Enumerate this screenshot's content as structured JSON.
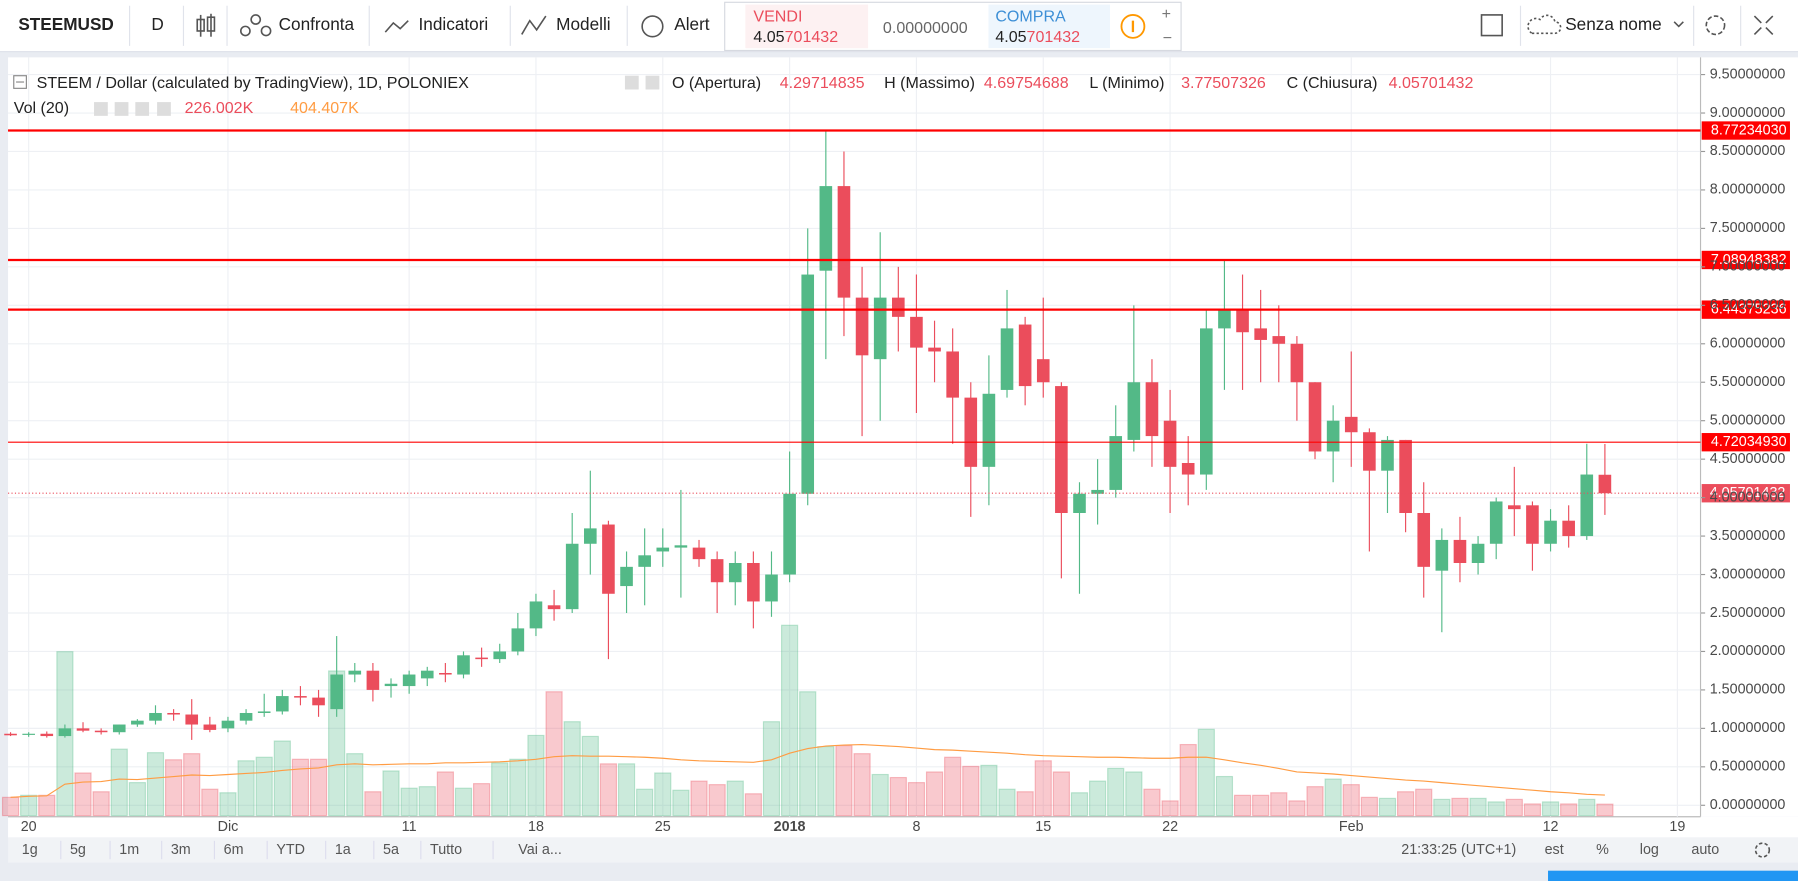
{
  "toolbar": {
    "symbol": "STEEMUSD",
    "interval": "D",
    "compare": "Confronta",
    "indicators": "Indicatori",
    "templates": "Modelli",
    "alert": "Alert",
    "sell_label": "VENDI",
    "sell_price": 4.05701432,
    "spread": "0.00000000",
    "buy_label": "COMPRA",
    "buy_price": 4.05701432,
    "layout_name": "Senza nome"
  },
  "bottom_bar": {
    "ranges": [
      "1g",
      "5g",
      "1m",
      "3m",
      "6m",
      "YTD",
      "1a",
      "5a",
      "Tutto"
    ],
    "goto": "Vai a...",
    "clock": "21:33:25 (UTC+1)",
    "est": "est",
    "percent": "%",
    "log": "log",
    "auto": "auto"
  },
  "chart_data": {
    "type": "candlestick",
    "title": "STEEM / Dollar (calculated by TradingView), 1D, POLONIEX",
    "legend": {
      "open": "O (Apertura)",
      "high": "H (Massimo)",
      "low": "L (Minimo)",
      "close": "C (Chiusura)",
      "volume_title": "Vol (20)",
      "volume": "226.002K",
      "ma": "404.407K"
    },
    "x": [
      "2017-11-19",
      "2017-11-20",
      "2017-11-21",
      "2017-11-22",
      "2017-11-23",
      "2017-11-24",
      "2017-11-25",
      "2017-11-26",
      "2017-11-27",
      "2017-11-28",
      "2017-11-29",
      "2017-11-30",
      "2017-12-01",
      "2017-12-02",
      "2017-12-03",
      "2017-12-04",
      "2017-12-05",
      "2017-12-06",
      "2017-12-07",
      "2017-12-08",
      "2017-12-09",
      "2017-12-10",
      "2017-12-11",
      "2017-12-12",
      "2017-12-13",
      "2017-12-14",
      "2017-12-15",
      "2017-12-16",
      "2017-12-17",
      "2017-12-18",
      "2017-12-19",
      "2017-12-20",
      "2017-12-21",
      "2017-12-22",
      "2017-12-23",
      "2017-12-24",
      "2017-12-25",
      "2017-12-26",
      "2017-12-27",
      "2017-12-28",
      "2017-12-29",
      "2017-12-30",
      "2017-12-31",
      "2018-01-01",
      "2018-01-02",
      "2018-01-03",
      "2018-01-04",
      "2018-01-05",
      "2018-01-06",
      "2018-01-07",
      "2018-01-08",
      "2018-01-09",
      "2018-01-10",
      "2018-01-11",
      "2018-01-12",
      "2018-01-13",
      "2018-01-14",
      "2018-01-15",
      "2018-01-16",
      "2018-01-17",
      "2018-01-18",
      "2018-01-19",
      "2018-01-20",
      "2018-01-21",
      "2018-01-22",
      "2018-01-23",
      "2018-01-24",
      "2018-01-25",
      "2018-01-26",
      "2018-01-27",
      "2018-01-28",
      "2018-01-29",
      "2018-01-30",
      "2018-01-31",
      "2018-02-01",
      "2018-02-02",
      "2018-02-03",
      "2018-02-04",
      "2018-02-05",
      "2018-02-06",
      "2018-02-07",
      "2018-02-08",
      "2018-02-09",
      "2018-02-10",
      "2018-02-11",
      "2018-02-12",
      "2018-02-13",
      "2018-02-14",
      "2018-02-15"
    ],
    "open": [
      0.93,
      0.92,
      0.93,
      0.9,
      1.0,
      0.97,
      0.95,
      1.05,
      1.1,
      1.2,
      1.18,
      1.05,
      1.0,
      1.1,
      1.2,
      1.22,
      1.42,
      1.4,
      1.25,
      1.7,
      1.75,
      1.55,
      1.55,
      1.65,
      1.72,
      1.7,
      1.92,
      1.9,
      2.0,
      2.3,
      2.6,
      2.55,
      3.4,
      3.65,
      2.85,
      3.1,
      3.3,
      3.35,
      3.35,
      3.2,
      2.9,
      3.15,
      2.65,
      3.0,
      4.05,
      6.95,
      8.05,
      6.6,
      5.8,
      6.6,
      6.35,
      5.95,
      5.9,
      5.3,
      4.4,
      5.4,
      6.25,
      5.8,
      5.45,
      3.8,
      4.05,
      4.1,
      4.75,
      5.5,
      5.0,
      4.45,
      4.3,
      6.2,
      6.45,
      6.2,
      6.1,
      6.0,
      5.5,
      4.6,
      5.05,
      4.85,
      4.35,
      4.75,
      3.8,
      3.05,
      3.45,
      3.15,
      3.4,
      3.9,
      3.9,
      3.4,
      3.7,
      3.5,
      4.29714835
    ],
    "high": [
      0.95,
      0.95,
      0.96,
      1.05,
      1.08,
      1.0,
      1.05,
      1.12,
      1.3,
      1.25,
      1.38,
      1.15,
      1.15,
      1.25,
      1.45,
      1.5,
      1.55,
      1.5,
      2.2,
      1.85,
      1.85,
      1.65,
      1.75,
      1.8,
      1.85,
      2.0,
      2.05,
      2.1,
      2.5,
      2.75,
      2.8,
      3.8,
      4.35,
      3.7,
      3.3,
      3.6,
      3.6,
      4.1,
      3.45,
      3.3,
      3.3,
      3.3,
      3.3,
      4.6,
      7.5,
      8.77,
      8.5,
      7.0,
      7.45,
      7.0,
      6.9,
      6.3,
      6.2,
      5.5,
      5.85,
      6.7,
      6.35,
      6.6,
      5.5,
      4.2,
      4.5,
      5.2,
      6.5,
      5.8,
      5.4,
      4.8,
      6.45,
      7.1,
      6.9,
      6.7,
      6.5,
      6.1,
      5.5,
      5.2,
      5.9,
      4.9,
      4.8,
      4.75,
      4.2,
      3.6,
      3.75,
      3.5,
      4.0,
      4.4,
      3.95,
      3.85,
      3.9,
      4.7,
      4.69754688
    ],
    "low": [
      0.9,
      0.89,
      0.88,
      0.88,
      0.95,
      0.92,
      0.92,
      1.02,
      1.05,
      1.1,
      0.85,
      0.95,
      0.95,
      1.05,
      1.15,
      1.18,
      1.3,
      1.15,
      1.15,
      1.6,
      1.35,
      1.4,
      1.45,
      1.55,
      1.6,
      1.65,
      1.8,
      1.85,
      1.95,
      2.2,
      2.4,
      2.5,
      3.0,
      1.9,
      2.5,
      2.6,
      3.1,
      2.7,
      3.1,
      2.5,
      2.6,
      2.3,
      2.45,
      2.9,
      3.9,
      5.8,
      6.1,
      4.8,
      5.0,
      5.9,
      5.1,
      5.5,
      4.7,
      3.75,
      3.9,
      5.3,
      5.2,
      5.3,
      2.95,
      2.75,
      3.65,
      4.0,
      4.6,
      4.4,
      3.8,
      3.9,
      4.1,
      5.4,
      5.4,
      5.5,
      5.5,
      5.0,
      4.5,
      4.2,
      4.4,
      3.3,
      3.8,
      3.55,
      2.7,
      2.25,
      2.9,
      3.0,
      3.2,
      3.5,
      3.05,
      3.3,
      3.35,
      3.45,
      3.77507326
    ],
    "close": [
      0.91,
      0.93,
      0.9,
      1.0,
      0.97,
      0.95,
      1.05,
      1.1,
      1.2,
      1.18,
      1.05,
      0.98,
      1.1,
      1.2,
      1.22,
      1.42,
      1.4,
      1.3,
      1.7,
      1.75,
      1.5,
      1.58,
      1.7,
      1.75,
      1.7,
      1.95,
      1.9,
      2.0,
      2.3,
      2.65,
      2.55,
      3.4,
      3.6,
      2.75,
      3.1,
      3.25,
      3.35,
      3.38,
      3.2,
      2.9,
      3.15,
      2.65,
      3.0,
      4.05,
      6.9,
      8.05,
      6.6,
      5.85,
      6.6,
      6.35,
      5.95,
      5.9,
      5.3,
      4.4,
      5.35,
      6.2,
      5.45,
      5.5,
      3.8,
      4.05,
      4.1,
      4.8,
      5.5,
      4.8,
      4.4,
      4.3,
      6.2,
      6.45,
      6.15,
      6.05,
      6.0,
      5.5,
      4.6,
      5.0,
      4.85,
      4.35,
      4.75,
      3.8,
      3.1,
      3.45,
      3.15,
      3.4,
      3.95,
      3.85,
      3.4,
      3.7,
      3.5,
      4.3,
      4.05701432
    ],
    "volume": [
      360,
      400,
      400,
      3230,
      840,
      470,
      1310,
      650,
      1240,
      1100,
      1220,
      520,
      450,
      1080,
      1150,
      1470,
      1110,
      1110,
      2850,
      1220,
      470,
      880,
      540,
      570,
      860,
      540,
      630,
      1040,
      1110,
      1580,
      2440,
      1850,
      1560,
      1020,
      1020,
      520,
      840,
      500,
      680,
      610,
      680,
      430,
      1850,
      3750,
      2440,
      1360,
      1380,
      1220,
      810,
      750,
      650,
      860,
      1150,
      970,
      990,
      520,
      470,
      1080,
      860,
      450,
      680,
      930,
      860,
      520,
      290,
      1400,
      1700,
      770,
      400,
      400,
      450,
      290,
      570,
      720,
      610,
      360,
      340,
      470,
      520,
      320,
      340,
      340,
      270,
      320,
      230,
      270,
      230,
      320,
      226.002
    ],
    "ma": [
      360,
      380,
      390,
      620,
      660,
      670,
      720,
      710,
      740,
      770,
      800,
      790,
      810,
      830,
      850,
      890,
      920,
      940,
      1000,
      1020,
      1000,
      1010,
      1020,
      1020,
      1040,
      1040,
      1050,
      1060,
      1080,
      1110,
      1160,
      1180,
      1170,
      1170,
      1160,
      1150,
      1130,
      1100,
      1080,
      1070,
      1060,
      1050,
      1100,
      1230,
      1320,
      1370,
      1390,
      1400,
      1380,
      1360,
      1330,
      1300,
      1290,
      1270,
      1250,
      1230,
      1200,
      1180,
      1170,
      1160,
      1150,
      1150,
      1140,
      1130,
      1130,
      1150,
      1150,
      1100,
      1040,
      990,
      930,
      860,
      840,
      820,
      790,
      760,
      730,
      700,
      680,
      650,
      620,
      590,
      560,
      530,
      500,
      470,
      450,
      420,
      404.407
    ],
    "up_color": "#53b987",
    "down_color": "#eb4d5c",
    "ma_color": "#ff9c43",
    "level_color": "#ff0000",
    "levels": [
      {
        "value": 8.7723403,
        "label": "8.77234030"
      },
      {
        "value": 7.08948382,
        "label": "7.08948382"
      },
      {
        "value": 6.44375236,
        "label": "6.44375236"
      },
      {
        "value": 4.7203493,
        "label": "4.72034930"
      }
    ],
    "ylim": [
      0,
      9.5
    ],
    "yticks": [
      {
        "value": 0,
        "label": "0.00000000"
      },
      {
        "value": 0.5,
        "label": "0.50000000"
      },
      {
        "value": 1,
        "label": "1.00000000"
      },
      {
        "value": 1.5,
        "label": "1.50000000"
      },
      {
        "value": 2,
        "label": "2.00000000"
      },
      {
        "value": 2.5,
        "label": "2.50000000"
      },
      {
        "value": 3,
        "label": "3.00000000"
      },
      {
        "value": 3.5,
        "label": "3.50000000"
      },
      {
        "value": 4,
        "label": "4.00000000"
      },
      {
        "value": 4.5,
        "label": "4.50000000"
      },
      {
        "value": 5,
        "label": "5.00000000"
      },
      {
        "value": 5.5,
        "label": "5.50000000"
      },
      {
        "value": 6,
        "label": "6.00000000"
      },
      {
        "value": 6.5,
        "label": "6.50000000"
      },
      {
        "value": 7,
        "label": "7.00000000"
      },
      {
        "value": 7.5,
        "label": "7.50000000"
      },
      {
        "value": 8,
        "label": "8.00000000"
      },
      {
        "value": 8.5,
        "label": "8.50000000"
      },
      {
        "value": 9,
        "label": "9.00000000"
      },
      {
        "value": 9.5,
        "label": "9.50000000"
      }
    ],
    "xticks": [
      {
        "value": "2017-11-20",
        "label": "20"
      },
      {
        "value": "2017-12-01",
        "label": "Dic"
      },
      {
        "value": "2017-12-11",
        "label": "11"
      },
      {
        "value": "2017-12-18",
        "label": "18"
      },
      {
        "value": "2017-12-25",
        "label": "25"
      },
      {
        "value": "2018-01-01",
        "label": "2018"
      },
      {
        "value": "2018-01-08",
        "label": "8"
      },
      {
        "value": "2018-01-15",
        "label": "15"
      },
      {
        "value": "2018-01-22",
        "label": "22"
      },
      {
        "value": "2018-02-01",
        "label": "Feb"
      },
      {
        "value": "2018-02-12",
        "label": "12"
      },
      {
        "value": "2018-02-19",
        "label": "19"
      }
    ],
    "grid": true
  }
}
